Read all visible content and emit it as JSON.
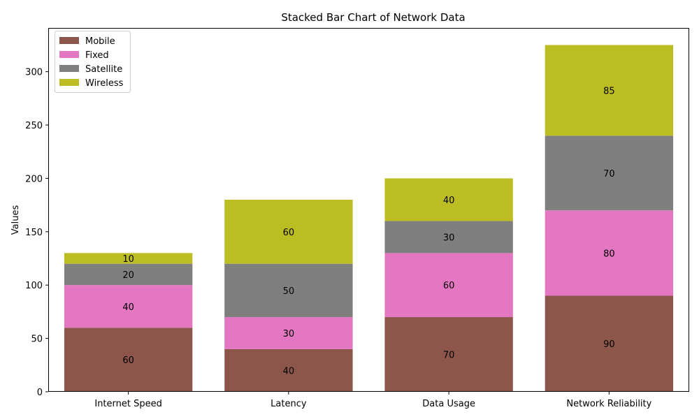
{
  "chart_data": {
    "type": "bar",
    "stacked": true,
    "title": "Stacked Bar Chart of Network Data",
    "xlabel": "",
    "ylabel": "Values",
    "categories": [
      "Internet Speed",
      "Latency",
      "Data Usage",
      "Network Reliability"
    ],
    "series": [
      {
        "name": "Mobile",
        "color": "#8c564b",
        "values": [
          60,
          40,
          70,
          90
        ]
      },
      {
        "name": "Fixed",
        "color": "#e377c2",
        "values": [
          40,
          30,
          60,
          80
        ]
      },
      {
        "name": "Satellite",
        "color": "#7f7f7f",
        "values": [
          20,
          50,
          30,
          70
        ]
      },
      {
        "name": "Wireless",
        "color": "#bcbd22",
        "values": [
          10,
          60,
          40,
          85
        ]
      }
    ],
    "ylim": [
      0,
      341
    ],
    "yticks": [
      0,
      50,
      100,
      150,
      200,
      250,
      300
    ],
    "grid": false,
    "legend_position": "top-left"
  }
}
